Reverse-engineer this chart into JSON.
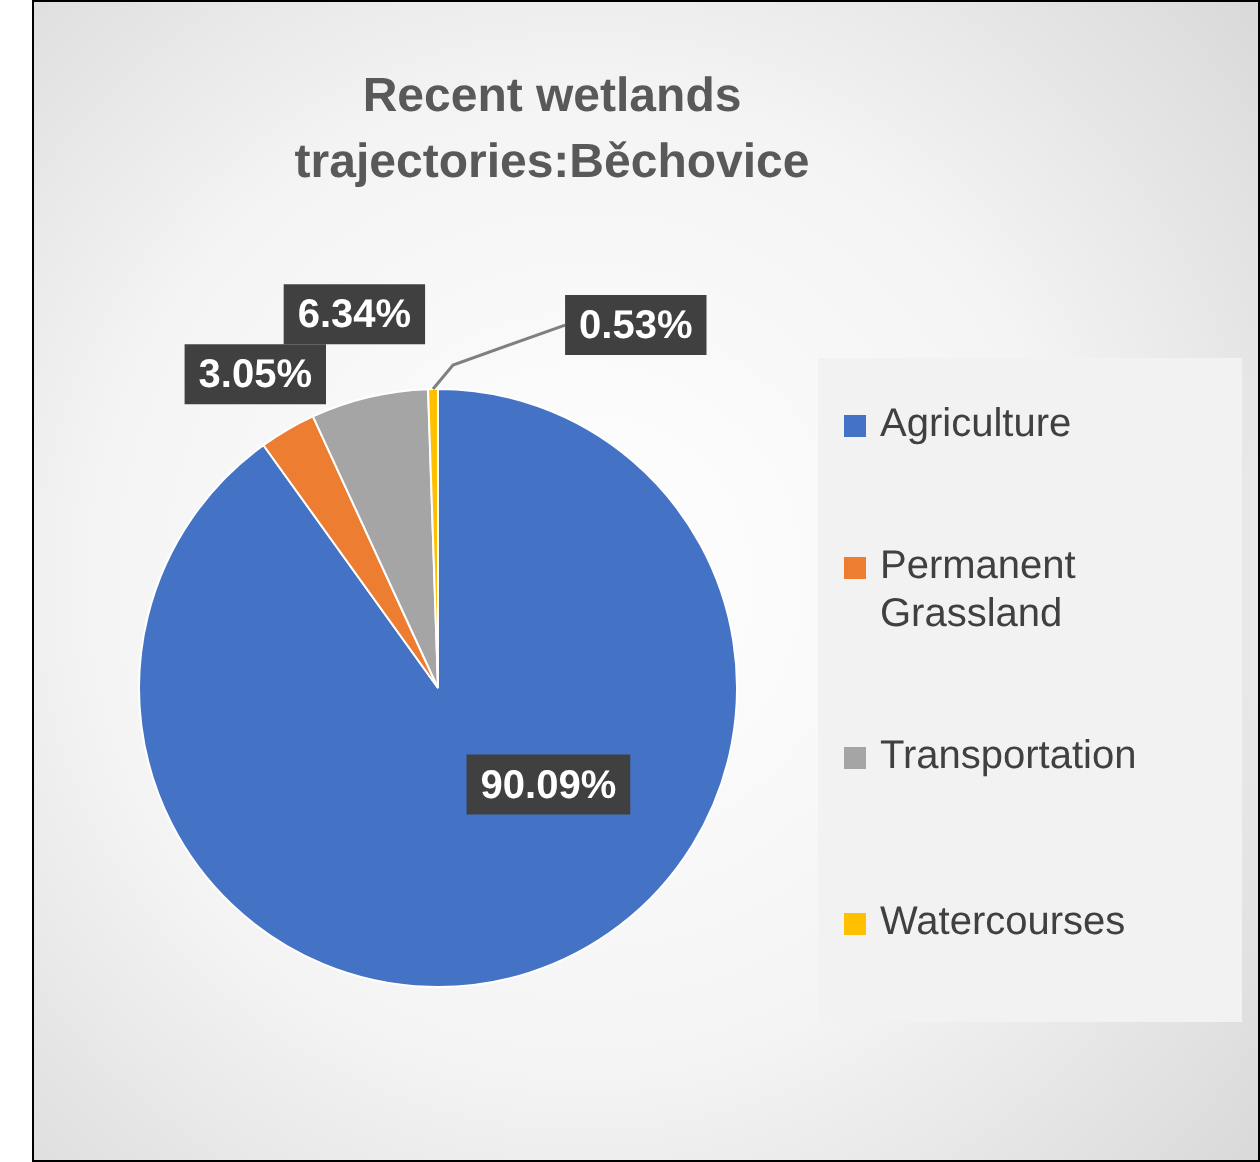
{
  "chart_data": {
    "type": "pie",
    "title": "Recent wetlands trajectories:Běchovice",
    "categories": [
      "Agriculture",
      "Permanent Grassland",
      "Transportation",
      "Watercourses"
    ],
    "values": [
      90.09,
      3.05,
      6.34,
      0.53
    ],
    "colors": [
      "#4472c4",
      "#ed7d31",
      "#a5a5a5",
      "#ffc000"
    ],
    "value_labels": [
      "90.09%",
      "3.05%",
      "6.34%",
      "0.53%"
    ],
    "legend": "right"
  }
}
